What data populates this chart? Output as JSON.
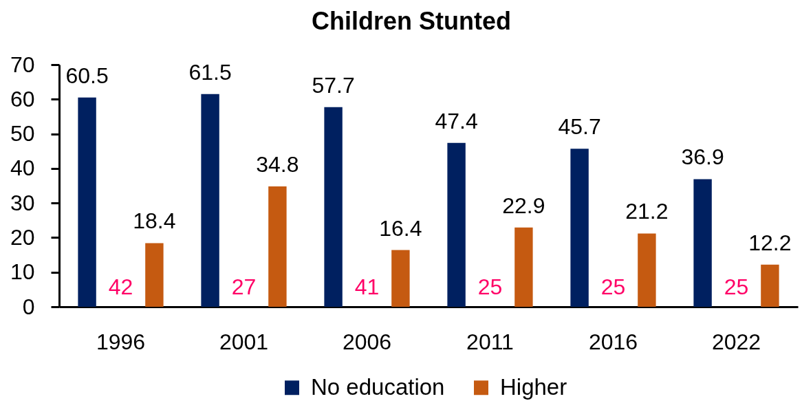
{
  "chart_data": {
    "type": "bar",
    "title": "Children Stunted",
    "categories": [
      "1996",
      "2001",
      "2006",
      "2011",
      "2016",
      "2022"
    ],
    "series": [
      {
        "name": "No education",
        "color": "#002060",
        "values": [
          60.5,
          61.5,
          57.7,
          47.4,
          45.7,
          36.9
        ]
      },
      {
        "name": "Higher",
        "color": "#c55a11",
        "values": [
          18.4,
          34.8,
          16.4,
          22.9,
          21.2,
          12.2
        ]
      }
    ],
    "ylim": [
      0,
      70
    ],
    "yticks": [
      0,
      10,
      20,
      30,
      40,
      50,
      60,
      70
    ],
    "data_labels": true,
    "legend": "bottom",
    "annotations": [
      "42",
      "27",
      "41",
      "25",
      "25",
      "25"
    ]
  }
}
